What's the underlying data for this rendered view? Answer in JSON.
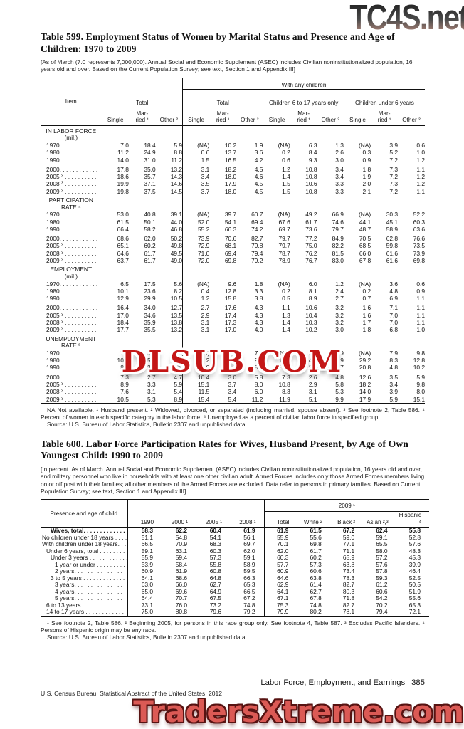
{
  "watermarks": {
    "top": "TC4S.net",
    "middle": "DLSUB.COM",
    "bottom": "TradersXtreme.com"
  },
  "table599": {
    "title": "Table 599. Employment Status of Women by Marital Status and Presence and Age of Children: 1970 to 2009",
    "note": "[As of March (7.0 represents 7,000,000). Annual Social and Economic Supplement (ASEC) includes Civilian noninstitutionalized population, 16 years old and over. Based on the Current Population Survey; see text, Section 1 and Appendix III]",
    "headers": {
      "item": "Item",
      "total": "Total",
      "with_any_children": "With any children",
      "group_total": "Total",
      "group_6_17": "Children 6 to 17 years only",
      "group_under_6": "Children under 6 years",
      "single": "Single",
      "married_line1": "Mar-",
      "married_line2": "ried ¹",
      "other": "Other ²"
    },
    "sections": [
      {
        "heading": [
          "IN LABOR FORCE",
          "(mil.)"
        ],
        "rows": [
          {
            "label": "1970. . . . . . . . . . . .",
            "values": [
              "7.0",
              "18.4",
              "5.9",
              "(NA)",
              "10.2",
              "1.9",
              "(NA)",
              "6.3",
              "1.3",
              "(NA)",
              "3.9",
              "0.6"
            ]
          },
          {
            "label": "1980. . . . . . . . . . . .",
            "values": [
              "11.2",
              "24.9",
              "8.8",
              "0.6",
              "13.7",
              "3.6",
              "0.2",
              "8.4",
              "2.6",
              "0.3",
              "5.2",
              "1.0"
            ]
          },
          {
            "label": "1990. . . . . . . . . . . .",
            "values": [
              "14.0",
              "31.0",
              "11.2",
              "1.5",
              "16.5",
              "4.2",
              "0.6",
              "9.3",
              "3.0",
              "0.9",
              "7.2",
              "1.2"
            ]
          },
          {
            "label": "2000. . . . . . . . . . . .",
            "values": [
              "17.8",
              "35.0",
              "13.2",
              "3.1",
              "18.2",
              "4.5",
              "1.2",
              "10.8",
              "3.4",
              "1.8",
              "7.3",
              "1.1"
            ]
          },
          {
            "label": "2005 ³ . . . . . . . . . .",
            "values": [
              "18.6",
              "35.7",
              "14.3",
              "3.4",
              "18.0",
              "4.6",
              "1.4",
              "10.8",
              "3.4",
              "1.9",
              "7.2",
              "1.2"
            ]
          },
          {
            "label": "2008 ³ . . . . . . . . . .",
            "values": [
              "19.9",
              "37.1",
              "14.6",
              "3.5",
              "17.9",
              "4.5",
              "1.5",
              "10.6",
              "3.3",
              "2.0",
              "7.3",
              "1.2"
            ]
          },
          {
            "label": "2009 ³ . . . . . . . . . .",
            "values": [
              "19.8",
              "37.5",
              "14.5",
              "3.7",
              "18.0",
              "4.5",
              "1.5",
              "10.8",
              "3.3",
              "2.1",
              "7.2",
              "1.1"
            ]
          }
        ]
      },
      {
        "heading": [
          "PARTICIPATION",
          "RATE ⁴"
        ],
        "rows": [
          {
            "label": "1970. . . . . . . . . . . .",
            "values": [
              "53.0",
              "40.8",
              "39.1",
              "(NA)",
              "39.7",
              "60.7",
              "(NA)",
              "49.2",
              "66.9",
              "(NA)",
              "30.3",
              "52.2"
            ]
          },
          {
            "label": "1980. . . . . . . . . . . .",
            "values": [
              "61.5",
              "50.1",
              "44.0",
              "52.0",
              "54.1",
              "69.4",
              "67.6",
              "61.7",
              "74.6",
              "44.1",
              "45.1",
              "60.3"
            ]
          },
          {
            "label": "1990. . . . . . . . . . . .",
            "values": [
              "66.4",
              "58.2",
              "46.8",
              "55.2",
              "66.3",
              "74.2",
              "69.7",
              "73.6",
              "79.7",
              "48.7",
              "58.9",
              "63.6"
            ]
          },
          {
            "label": "2000. . . . . . . . . . . .",
            "values": [
              "68.6",
              "62.0",
              "50.2",
              "73.9",
              "70.6",
              "82.7",
              "79.7",
              "77.2",
              "84.9",
              "70.5",
              "62.8",
              "76.6"
            ]
          },
          {
            "label": "2005 ³ . . . . . . . . . .",
            "values": [
              "65.1",
              "60.2",
              "49.8",
              "72.9",
              "68.1",
              "79.8",
              "79.7",
              "75.0",
              "82.2",
              "68.5",
              "59.8",
              "73.5"
            ]
          },
          {
            "label": "2008 ³ . . . . . . . . . .",
            "values": [
              "64.6",
              "61.7",
              "49.5",
              "71.0",
              "69.4",
              "79.4",
              "78.7",
              "76.2",
              "81.5",
              "66.0",
              "61.6",
              "73.9"
            ]
          },
          {
            "label": "2009 ³ . . . . . . . . . .",
            "values": [
              "63.7",
              "61.7",
              "49.0",
              "72.0",
              "69.8",
              "79.2",
              "78.9",
              "76.7",
              "83.0",
              "67.8",
              "61.6",
              "69.8"
            ]
          }
        ]
      },
      {
        "heading": [
          "EMPLOYMENT",
          "(mil.)"
        ],
        "rows": [
          {
            "label": "1970. . . . . . . . . . . .",
            "values": [
              "6.5",
              "17.5",
              "5.6",
              "(NA)",
              "9.6",
              "1.8",
              "(NA)",
              "6.0",
              "1.2",
              "(NA)",
              "3.6",
              "0.6"
            ]
          },
          {
            "label": "1980. . . . . . . . . . . .",
            "values": [
              "10.1",
              "23.6",
              "8.2",
              "0.4",
              "12.8",
              "3.3",
              "0.2",
              "8.1",
              "2.4",
              "0.2",
              "4.8",
              "0.9"
            ]
          },
          {
            "label": "1990. . . . . . . . . . . .",
            "values": [
              "12.9",
              "29.9",
              "10.5",
              "1.2",
              "15.8",
              "3.8",
              "0.5",
              "8.9",
              "2.7",
              "0.7",
              "6.9",
              "1.1"
            ]
          },
          {
            "label": "2000. . . . . . . . . . . .",
            "values": [
              "16.4",
              "34.0",
              "12.7",
              "2.7",
              "17.6",
              "4.3",
              "1.1",
              "10.6",
              "3.2",
              "1.6",
              "7.1",
              "1.1"
            ]
          },
          {
            "label": "2005 ³ . . . . . . . . . .",
            "values": [
              "17.0",
              "34.6",
              "13.5",
              "2.9",
              "17.4",
              "4.3",
              "1.3",
              "10.4",
              "3.2",
              "1.6",
              "7.0",
              "1.1"
            ]
          },
          {
            "label": "2008 ³ . . . . . . . . . .",
            "values": [
              "18.4",
              "35.9",
              "13.8",
              "3.1",
              "17.3",
              "4.3",
              "1.4",
              "10.3",
              "3.2",
              "1.7",
              "7.0",
              "1.1"
            ]
          },
          {
            "label": "2009 ³ . . . . . . . . . .",
            "values": [
              "17.7",
              "35.5",
              "13.2",
              "3.1",
              "17.0",
              "4.0",
              "1.4",
              "10.2",
              "3.0",
              "1.8",
              "6.8",
              "1.0"
            ]
          }
        ]
      },
      {
        "heading": [
          "UNEMPLOYMENT",
          "RATE ⁵"
        ],
        "rows": [
          {
            "label": "1970. . . . . . . . . . . .",
            "values": [
              "7.1",
              "4.8",
              "4.8",
              "(NA)",
              "6.0",
              "7.2",
              "(NA)",
              "4.8",
              "5.9",
              "(NA)",
              "7.9",
              "9.8"
            ]
          },
          {
            "label": "1980. . . . . . . . . . . .",
            "values": [
              "10.3",
              "5.3",
              "6.4",
              "23.2",
              "5.9",
              "9.2",
              "15.6",
              "4.4",
              "7.9",
              "29.2",
              "8.3",
              "12.8"
            ]
          },
          {
            "label": "1990. . . . . . . . . . . .",
            "values": [
              "8.2",
              "3.8",
              "6.2",
              "18.0",
              "4.1",
              "8.2",
              "13.5",
              "3.4",
              "7.7",
              "20.8",
              "4.8",
              "10.2"
            ]
          },
          {
            "label": "2000. . . . . . . . . . . .",
            "values": [
              "7.3",
              "2.7",
              "4.7",
              "10.4",
              "3.0",
              "5.8",
              "7.3",
              "2.6",
              "4.8",
              "12.6",
              "3.5",
              "5.9"
            ]
          },
          {
            "label": "2005 ³ . . . . . . . . . .",
            "values": [
              "8.9",
              "3.3",
              "5.9",
              "15.1",
              "3.7",
              "8.0",
              "10.8",
              "2.9",
              "5.8",
              "18.2",
              "3.4",
              "9.8"
            ]
          },
          {
            "label": "2008 ³ . . . . . . . . . .",
            "values": [
              "7.6",
              "3.1",
              "5.4",
              "11.5",
              "3.4",
              "6.0",
              "8.3",
              "3.1",
              "5.3",
              "14.0",
              "3.9",
              "8.0"
            ]
          },
          {
            "label": "2009 ³ . . . . . . . . . .",
            "values": [
              "10.5",
              "5.3",
              "8.9",
              "15.4",
              "5.4",
              "11.2",
              "11.9",
              "5.1",
              "9.9",
              "17.9",
              "5.9",
              "15.1"
            ]
          }
        ]
      }
    ],
    "footnote": "NA Not available. ¹ Husband present. ² Widowed, divorced, or separated (including married, spouse absent). ³ See footnote 2, Table 586. ⁴ Percent of women in each specific category in the labor force. ⁵ Unemployed as a percent of civilian labor force in specified group.",
    "source": "Source: U.S. Bureau of Labor Statistics, Bulletin 2307 and unpublished data."
  },
  "table600": {
    "title": "Table 600. Labor Force Participation Rates for Wives, Husband Present, by Age of Own Youngest Child: 1990 to 2009",
    "note": "[In percent. As of March. Annual Social and Economic Supplement (ASEC) includes Civilian noninstitutionalized population, 16 years old and over, and military personnel who live in households with at least one other civilian adult. Armed Forces includes only those Armed Forces members living on or off post with their families; all other members of the Armed Forces are excluded. Data refer to persons in primary families. Based on Current Population Survey; see text, Section 1 and Appendix III]",
    "headers": {
      "stub": "Presence and age of child",
      "years": [
        "1990",
        "2000 ¹",
        "2005 ¹",
        "2008 ¹"
      ],
      "group_2009": "2009 ¹",
      "cols_2009": [
        "Total",
        "White ²",
        "Black ²",
        "Asian ²,³",
        "Hispanic ⁴"
      ]
    },
    "rows": [
      {
        "label": "Wives, total. . . . . . . . . . . . . .",
        "indent": 2,
        "bold": true,
        "values": [
          "58.3",
          "62.2",
          "60.4",
          "61.9",
          "61.9",
          "61.5",
          "67.2",
          "62.4",
          "55.8"
        ]
      },
      {
        "label": "No children under 18 years . . . .",
        "indent": 0,
        "bold": false,
        "values": [
          "51.1",
          "54.8",
          "54.1",
          "56.1",
          "55.9",
          "55.6",
          "59.0",
          "59.1",
          "52.8"
        ]
      },
      {
        "label": "With children under 18 years. . .",
        "indent": 0,
        "bold": false,
        "values": [
          "66.5",
          "70.9",
          "68.3",
          "69.7",
          "70.1",
          "69.8",
          "77.1",
          "65.5",
          "57.6"
        ]
      },
      {
        "label": "Under 6 years, total . . . . . . . . .",
        "indent": 1,
        "bold": false,
        "values": [
          "59.1",
          "63.1",
          "60.3",
          "62.0",
          "62.0",
          "61.7",
          "71.1",
          "58.0",
          "48.3"
        ]
      },
      {
        "label": "Under 3 years . . . . . . . . . . . .",
        "indent": 2,
        "bold": false,
        "values": [
          "55.9",
          "59.4",
          "57.3",
          "59.1",
          "60.3",
          "60.2",
          "65.9",
          "57.2",
          "45.3"
        ]
      },
      {
        "label": "1 year or under . . . . . . . . . .",
        "indent": 3,
        "bold": false,
        "values": [
          "53.9",
          "58.4",
          "55.8",
          "58.9",
          "57.7",
          "57.3",
          "63.8",
          "57.6",
          "39.9"
        ]
      },
      {
        "label": "2 years. . . . . . . . . . . . . . . . .",
        "indent": 3,
        "bold": false,
        "values": [
          "60.9",
          "61.9",
          "60.8",
          "59.5",
          "60.9",
          "60.6",
          "73.4",
          "57.8",
          "46.4"
        ]
      },
      {
        "label": "3 to 5 years . . . . . . . . . . . . .",
        "indent": 2,
        "bold": false,
        "values": [
          "64.1",
          "68.6",
          "64.8",
          "66.3",
          "64.6",
          "63.8",
          "78.3",
          "59.3",
          "52.5"
        ]
      },
      {
        "label": "3 years. . . . . . . . . . . . . . . . .",
        "indent": 3,
        "bold": false,
        "values": [
          "63.0",
          "66.0",
          "62.7",
          "65.3",
          "62.9",
          "61.4",
          "82.7",
          "61.2",
          "50.5"
        ]
      },
      {
        "label": "4 years. . . . . . . . . . . . . . . . .",
        "indent": 3,
        "bold": false,
        "values": [
          "65.0",
          "69.6",
          "64.9",
          "66.5",
          "64.1",
          "62.7",
          "80.3",
          "60.6",
          "51.9"
        ]
      },
      {
        "label": "5 years. . . . . . . . . . . . . . . . .",
        "indent": 3,
        "bold": false,
        "values": [
          "64.4",
          "70.7",
          "67.5",
          "67.2",
          "67.1",
          "67.8",
          "71.8",
          "54.2",
          "55.6"
        ]
      },
      {
        "label": "6 to 13 years . . . . . . . . . . . . .",
        "indent": 1,
        "bold": false,
        "values": [
          "73.1",
          "76.0",
          "73.2",
          "74.8",
          "75.3",
          "74.8",
          "82.7",
          "70.2",
          "65.3"
        ]
      },
      {
        "label": "14 to 17 years . . . . . . . . . . . .",
        "indent": 1,
        "bold": false,
        "values": [
          "75.0",
          "80.8",
          "79.6",
          "79.2",
          "79.9",
          "80.2",
          "78.1",
          "79.4",
          "72.1"
        ]
      }
    ],
    "footnote": "¹ See footnote 2, Table 586. ² Beginning 2005, for persons in this race group only. See footnote 4, Table 587. ³ Excludes Pacific Islanders. ⁴ Persons of Hispanic origin may be any race.",
    "source": "Source: U.S. Bureau of Labor Statistics, Bulletin 2307 and unpublished data."
  },
  "footer": {
    "chapter": "Labor Force, Employment, and Earnings",
    "page_number": "385",
    "credit": "U.S. Census Bureau, Statistical Abstract of the United States: 2012"
  }
}
